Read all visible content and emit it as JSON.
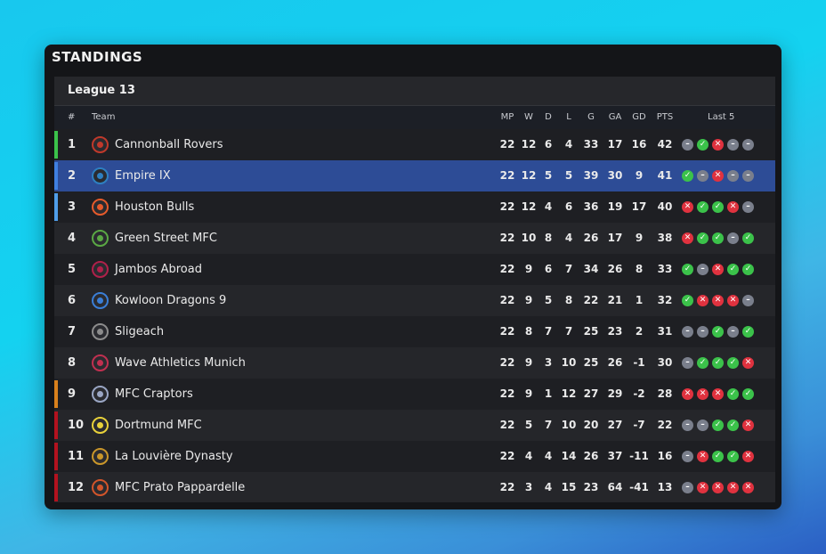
{
  "panel": {
    "title": "STANDINGS"
  },
  "league": {
    "name": "League 13"
  },
  "columns": {
    "rank": "#",
    "team": "Team",
    "mp": "MP",
    "w": "W",
    "d": "D",
    "l": "L",
    "g": "G",
    "ga": "GA",
    "gd": "GD",
    "pts": "PTS",
    "last5": "Last 5"
  },
  "colors": {
    "selected_row": "#2d4c96",
    "win": "#3bc24a",
    "loss": "#e0323f",
    "draw": "#7a7f8c",
    "zone_green": "#3bc24a",
    "zone_blue": "#3f7fe0",
    "zone_lightblue": "#4f9eea",
    "zone_orange": "#d9811c",
    "zone_red": "#b3121f"
  },
  "rows": [
    {
      "rank": "1",
      "team": "Cannonball Rovers",
      "logo": "rovers-crest-icon",
      "logo_color": "#c0392b",
      "zone": "#3bc24a",
      "mp": "22",
      "w": "12",
      "d": "6",
      "l": "4",
      "g": "33",
      "ga": "17",
      "gd": "16",
      "pts": "42",
      "form": [
        "D",
        "W",
        "L",
        "D",
        "D"
      ],
      "selected": false
    },
    {
      "rank": "2",
      "team": "Empire IX",
      "logo": "empire-ix-crest-icon",
      "logo_color": "#2e7fc1",
      "zone": "#3f7fe0",
      "mp": "22",
      "w": "12",
      "d": "5",
      "l": "5",
      "g": "39",
      "ga": "30",
      "gd": "9",
      "pts": "41",
      "form": [
        "W",
        "D",
        "L",
        "D",
        "D"
      ],
      "selected": true
    },
    {
      "rank": "3",
      "team": "Houston Bulls",
      "logo": "bulls-crest-icon",
      "logo_color": "#e55a2b",
      "zone": "#4f9eea",
      "mp": "22",
      "w": "12",
      "d": "4",
      "l": "6",
      "g": "36",
      "ga": "19",
      "gd": "17",
      "pts": "40",
      "form": [
        "L",
        "W",
        "W",
        "L",
        "D"
      ],
      "selected": false
    },
    {
      "rank": "4",
      "team": "Green Street MFC",
      "logo": "green-street-crest-icon",
      "logo_color": "#5aa844",
      "zone": null,
      "mp": "22",
      "w": "10",
      "d": "8",
      "l": "4",
      "g": "26",
      "ga": "17",
      "gd": "9",
      "pts": "38",
      "form": [
        "L",
        "W",
        "W",
        "D",
        "W"
      ],
      "selected": false
    },
    {
      "rank": "5",
      "team": "Jambos Abroad",
      "logo": "jambos-crest-icon",
      "logo_color": "#b0204a",
      "zone": null,
      "mp": "22",
      "w": "9",
      "d": "6",
      "l": "7",
      "g": "34",
      "ga": "26",
      "gd": "8",
      "pts": "33",
      "form": [
        "W",
        "D",
        "L",
        "W",
        "W"
      ],
      "selected": false
    },
    {
      "rank": "6",
      "team": "Kowloon Dragons 9",
      "logo": "dragons-crest-icon",
      "logo_color": "#3a7ed6",
      "zone": null,
      "mp": "22",
      "w": "9",
      "d": "5",
      "l": "8",
      "g": "22",
      "ga": "21",
      "gd": "1",
      "pts": "32",
      "form": [
        "W",
        "L",
        "L",
        "L",
        "D"
      ],
      "selected": false
    },
    {
      "rank": "7",
      "team": "Sligeach",
      "logo": "sligeach-crest-icon",
      "logo_color": "#8c8c8c",
      "zone": null,
      "mp": "22",
      "w": "8",
      "d": "7",
      "l": "7",
      "g": "25",
      "ga": "23",
      "gd": "2",
      "pts": "31",
      "form": [
        "D",
        "D",
        "W",
        "D",
        "W"
      ],
      "selected": false
    },
    {
      "rank": "8",
      "team": "Wave Athletics Munich",
      "logo": "wave-athletics-crest-icon",
      "logo_color": "#c03050",
      "zone": null,
      "mp": "22",
      "w": "9",
      "d": "3",
      "l": "10",
      "g": "25",
      "ga": "26",
      "gd": "-1",
      "pts": "30",
      "form": [
        "D",
        "W",
        "W",
        "W",
        "L"
      ],
      "selected": false
    },
    {
      "rank": "9",
      "team": "MFC Craptors",
      "logo": "craptors-crest-icon",
      "logo_color": "#9aa6c4",
      "zone": "#d9811c",
      "mp": "22",
      "w": "9",
      "d": "1",
      "l": "12",
      "g": "27",
      "ga": "29",
      "gd": "-2",
      "pts": "28",
      "form": [
        "L",
        "L",
        "L",
        "W",
        "W"
      ],
      "selected": false
    },
    {
      "rank": "10",
      "team": "Dortmund MFC",
      "logo": "dortmund-crest-icon",
      "logo_color": "#e8d13a",
      "zone": "#b3121f",
      "mp": "22",
      "w": "5",
      "d": "7",
      "l": "10",
      "g": "20",
      "ga": "27",
      "gd": "-7",
      "pts": "22",
      "form": [
        "D",
        "D",
        "W",
        "W",
        "L"
      ],
      "selected": false
    },
    {
      "rank": "11",
      "team": "La Louvière Dynasty",
      "logo": "la-louviere-crest-icon",
      "logo_color": "#c9962a",
      "zone": "#b3121f",
      "mp": "22",
      "w": "4",
      "d": "4",
      "l": "14",
      "g": "26",
      "ga": "37",
      "gd": "-11",
      "pts": "16",
      "form": [
        "D",
        "L",
        "W",
        "W",
        "L"
      ],
      "selected": false
    },
    {
      "rank": "12",
      "team": "MFC Prato Pappardelle",
      "logo": "prato-crest-icon",
      "logo_color": "#d2552a",
      "zone": "#b3121f",
      "mp": "22",
      "w": "3",
      "d": "4",
      "l": "15",
      "g": "23",
      "ga": "64",
      "gd": "-41",
      "pts": "13",
      "form": [
        "D",
        "L",
        "L",
        "L",
        "L"
      ],
      "selected": false
    }
  ]
}
